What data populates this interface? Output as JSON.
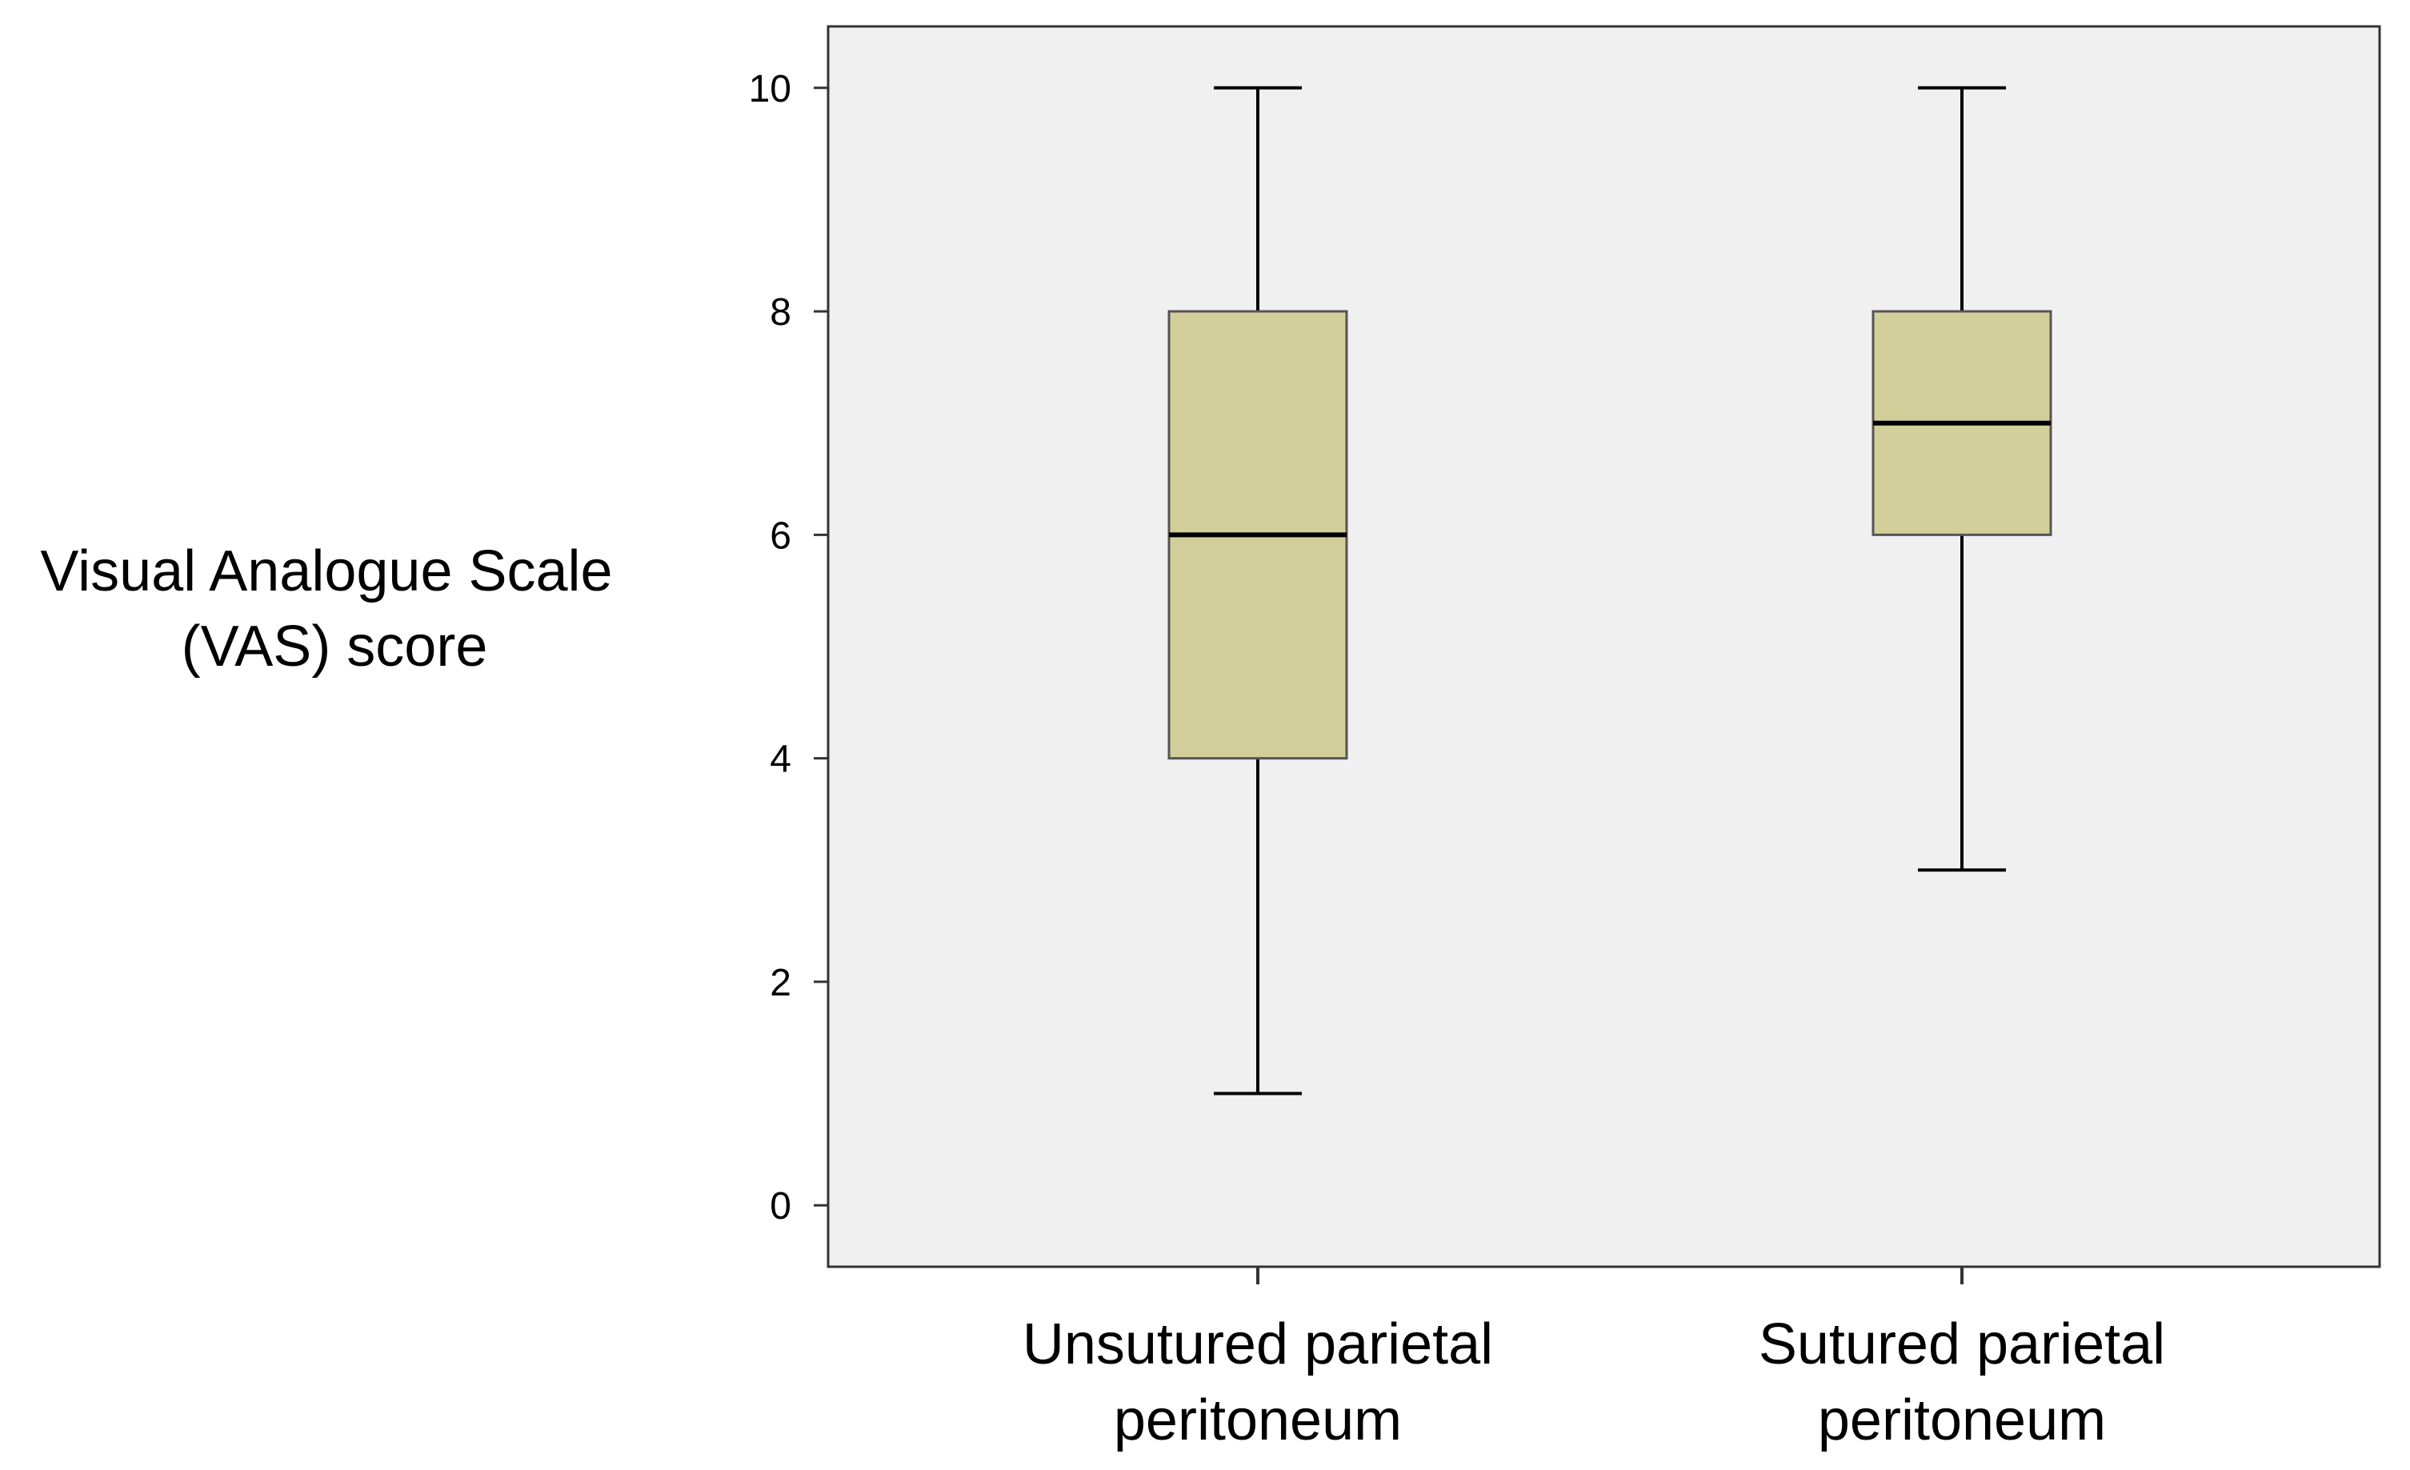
{
  "chart_data": {
    "type": "boxplot",
    "title": "",
    "xlabel": "",
    "ylabel_lines": [
      "Visual Analogue Scale",
      "(VAS) score"
    ],
    "ylim": [
      -0.55,
      10.55
    ],
    "yticks": [
      0,
      2,
      4,
      6,
      8,
      10
    ],
    "grid": false,
    "categories": [
      [
        "Unsutured parietal",
        "peritoneum"
      ],
      [
        "Sutured parietal",
        "peritoneum"
      ]
    ],
    "boxes": [
      {
        "name": "Unsutured parietal peritoneum",
        "min": 1,
        "q1": 4,
        "median": 6,
        "q3": 8,
        "max": 10
      },
      {
        "name": "Sutured parietal peritoneum",
        "min": 3,
        "q1": 6,
        "median": 7,
        "q3": 8,
        "max": 10
      }
    ],
    "colors": {
      "plot_background": "#f0f0f0",
      "box_fill": "#d3cf9b",
      "box_stroke": "#555555",
      "line": "#000000"
    }
  }
}
